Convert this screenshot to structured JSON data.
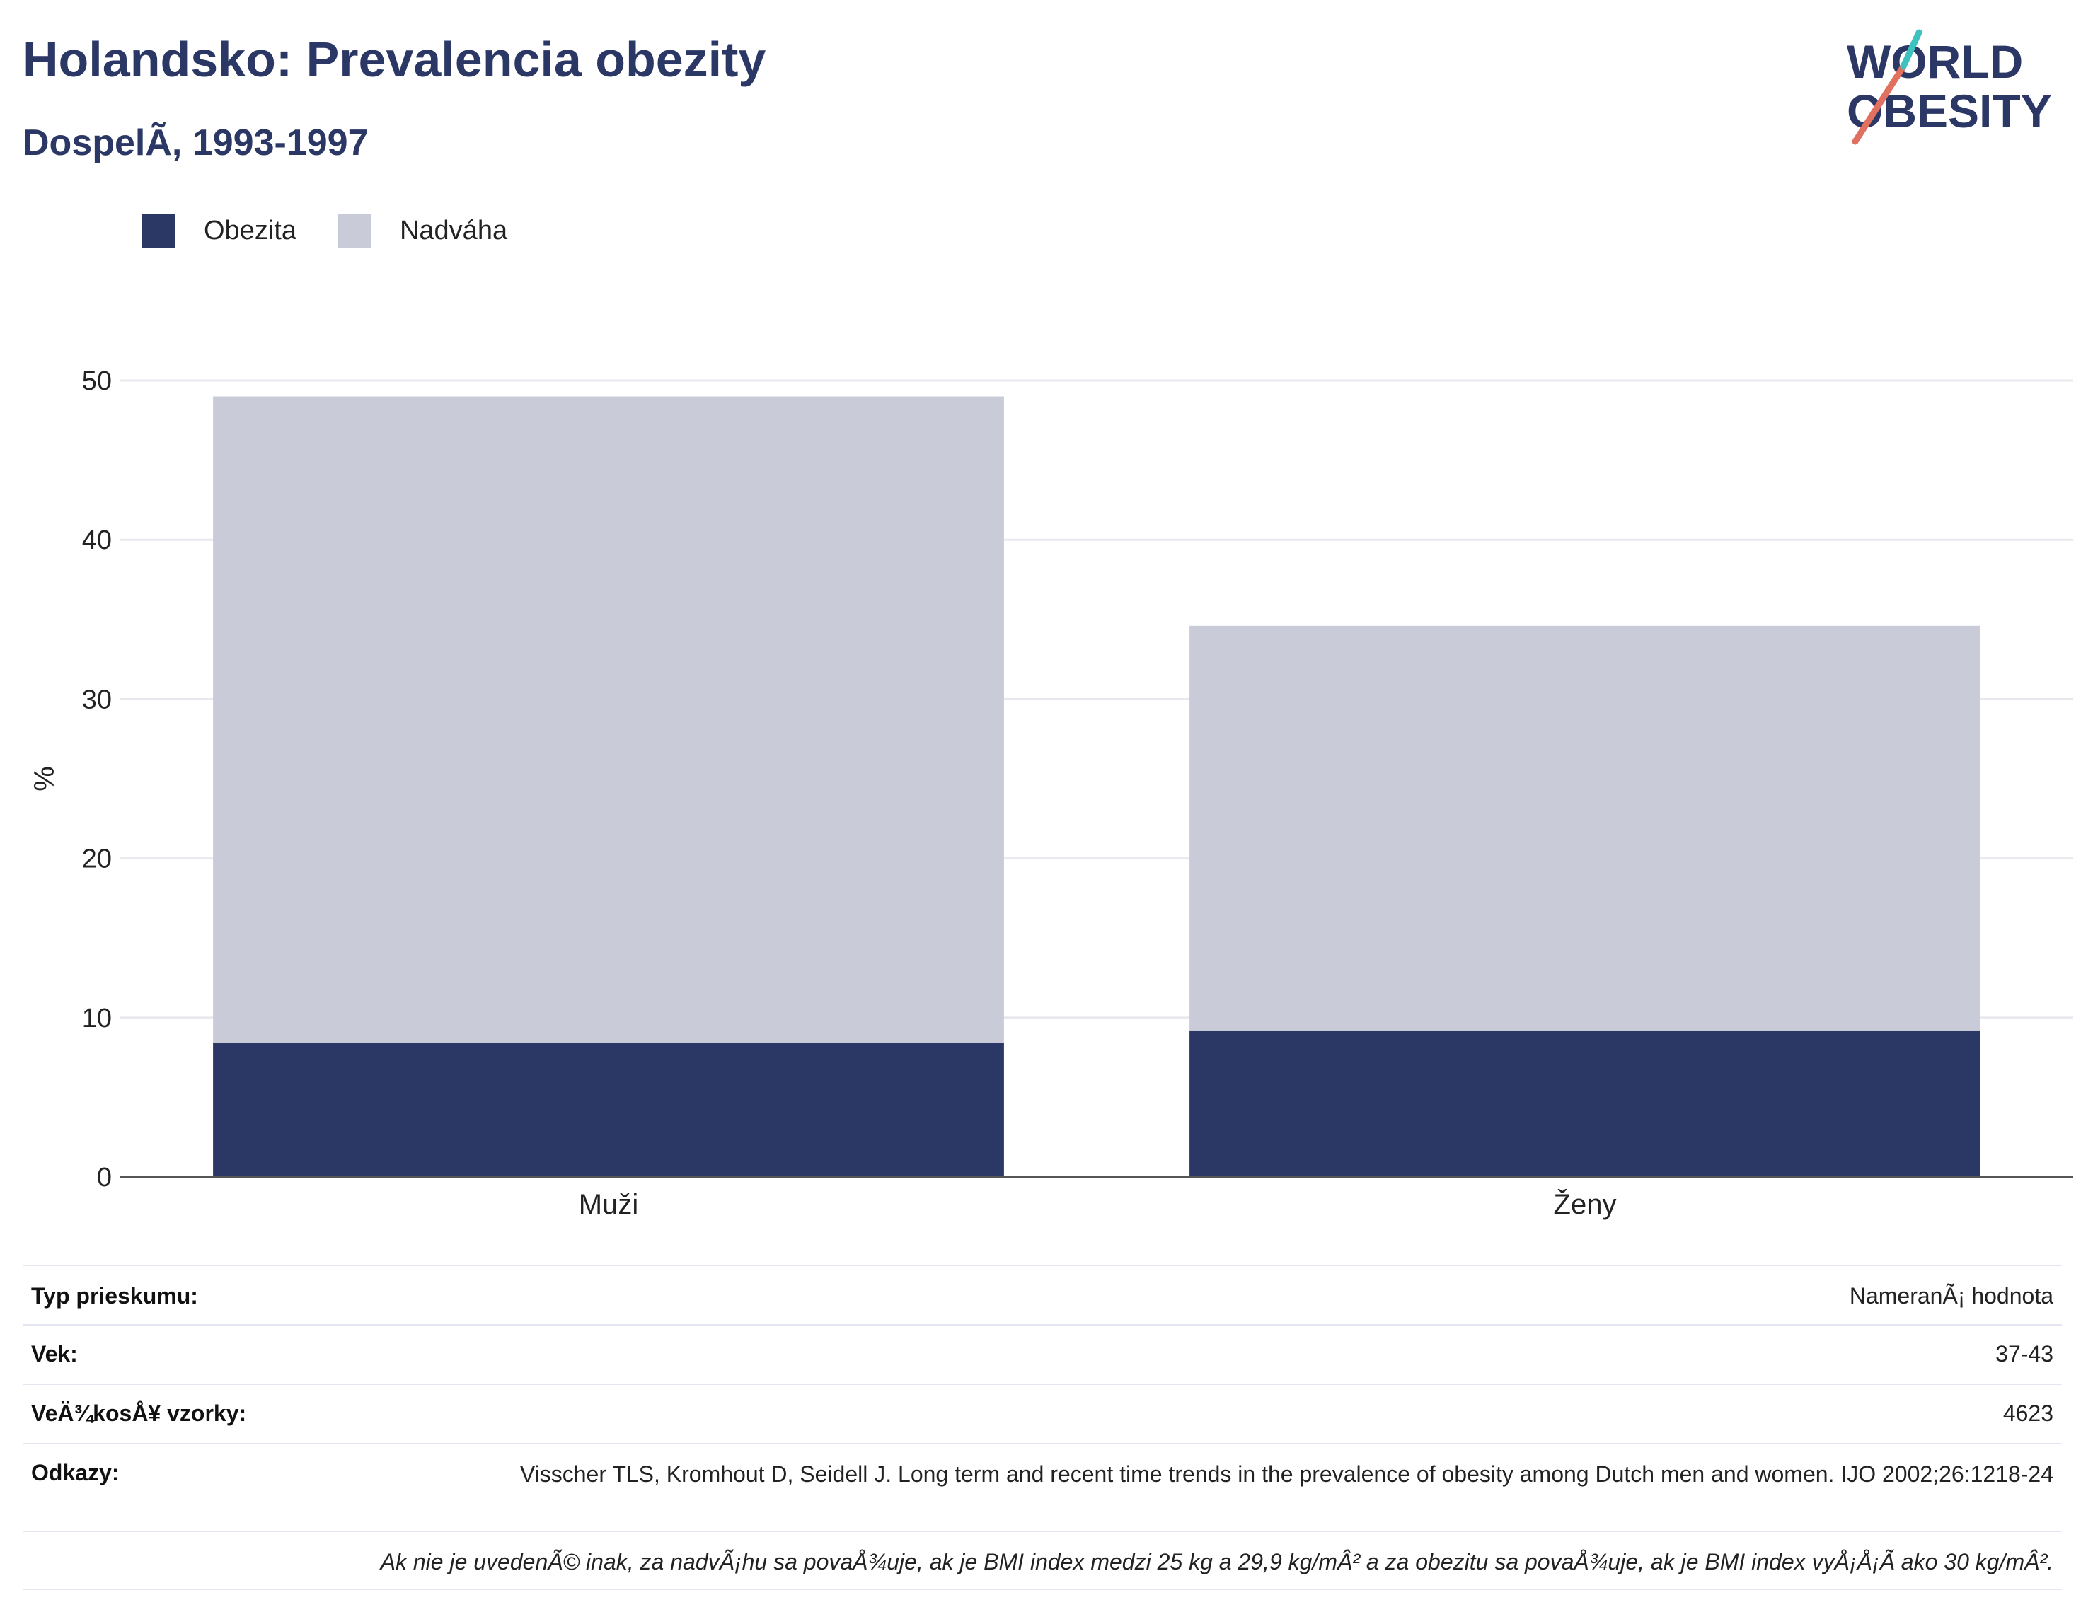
{
  "header": {
    "title": "Holandsko: Prevalencia obezity",
    "subtitle": "DospelÃ, 1993-1997"
  },
  "logo": {
    "line1": "WORLD",
    "line2": "OBESITY",
    "colors": [
      "#2b3765",
      "#e07060",
      "#3ec2c0"
    ]
  },
  "legend": [
    {
      "label": "Obezita",
      "color": "#2b3765"
    },
    {
      "label": "Nadváha",
      "color": "#c9ccd8"
    }
  ],
  "chart_data": {
    "type": "bar",
    "stacked": true,
    "categories": [
      "Muži",
      "Ženy"
    ],
    "series": [
      {
        "name": "Obezita",
        "values": [
          8.4,
          9.2
        ],
        "color": "#2b3765"
      },
      {
        "name": "Nadváha",
        "values": [
          40.6,
          25.4
        ],
        "color": "#c9ccd8"
      }
    ],
    "ylabel": "%",
    "ylim": [
      0,
      50
    ],
    "yticks": [
      0,
      10,
      20,
      30,
      40,
      50
    ],
    "grid": true,
    "legend_position": "top-left"
  },
  "info": {
    "survey_label": "Typ prieskumu:",
    "survey_value": "NameranÃ¡ hodnota",
    "age_label": "Vek:",
    "age_value": "37-43",
    "sample_label": "VeÄ¾kosÅ¥ vzorky:",
    "sample_value": "4623",
    "refs_label": "Odkazy:",
    "refs_value": "Visscher TLS, Kromhout D, Seidell J. Long term and recent time trends in the prevalence of obesity among Dutch men and women. IJO 2002;26:1218-24",
    "note": "Ak nie je uvedenÃ© inak, za nadvÃ¡hu sa povaÅ¾uje, ak je BMI index medzi 25 kg a 29,9 kg/mÂ² a za obezitu sa povaÅ¾uje, ak je BMI index vyÅ¡Å¡Ã ako 30 kg/mÂ²."
  }
}
